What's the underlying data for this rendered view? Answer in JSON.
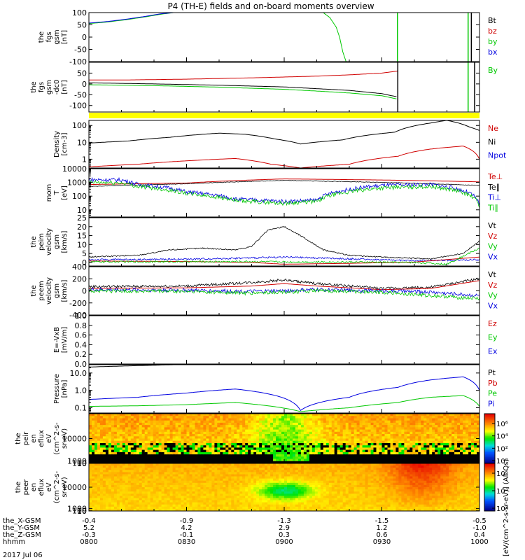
{
  "title": "P4 (TH-E) fields and on-board moments overview",
  "date": "2017 Jul 06",
  "colors": {
    "black": "#000000",
    "red": "#d00000",
    "green": "#00c800",
    "blue": "#0000e0",
    "yellow": "#ffff00"
  },
  "x_labels": {
    "rows": [
      {
        "label": "the_X-GSM",
        "values": [
          "-0.4",
          "-0.9",
          "-1.3",
          "-1.5",
          "-0.5"
        ]
      },
      {
        "label": "the_Y-GSM",
        "values": [
          "5.2",
          "4.2",
          "2.9",
          "1.2",
          "-1.0"
        ]
      },
      {
        "label": "the_Z-GSM",
        "values": [
          "-0.3",
          "-0.1",
          "0.3",
          "0.6",
          "0.4"
        ]
      },
      {
        "label": "hhmm",
        "values": [
          "0800",
          "0830",
          "0900",
          "0930",
          "1000"
        ]
      }
    ]
  },
  "chart_data": [
    {
      "type": "line",
      "id": "fgs",
      "ylabel": [
        "the",
        "fgs",
        "gsm",
        "[nT]"
      ],
      "ylim": [
        -100,
        100
      ],
      "yticks": [
        "100",
        "50",
        "0",
        "-50",
        "-100"
      ],
      "ytick_values": [
        100,
        50,
        0,
        -50,
        -100
      ],
      "legend": [
        {
          "name": "Bt",
          "color": "black"
        },
        {
          "name": "bz",
          "color": "red"
        },
        {
          "name": "by",
          "color": "green"
        },
        {
          "name": "bx",
          "color": "blue"
        }
      ],
      "series": [
        {
          "name": "by",
          "color": "green",
          "x": [
            800,
            806,
            812,
            818,
            822,
            826,
            827
          ],
          "y": [
            55,
            62,
            72,
            84,
            93,
            100,
            100
          ]
        },
        {
          "name": "bx",
          "color": "blue",
          "x": [
            800,
            806,
            812,
            818,
            822,
            826
          ],
          "y": [
            57,
            64,
            74,
            86,
            95,
            100
          ]
        },
        {
          "name": "by-late",
          "color": "green",
          "x": [
            912,
            914,
            916,
            917,
            918,
            919
          ],
          "y": [
            100,
            80,
            40,
            0,
            -60,
            -100
          ]
        }
      ],
      "vlines": [
        {
          "x": 934.8,
          "color": "green"
        },
        {
          "x": 956.5,
          "color": "green"
        },
        {
          "x": 957.5,
          "color": "black"
        }
      ]
    },
    {
      "type": "line",
      "id": "fgs-dc",
      "ylabel": [
        "the",
        "fgs",
        "gsm",
        "-dc0",
        "[nT]"
      ],
      "ylim": [
        -130,
        100
      ],
      "yticks": [
        "50",
        "0",
        "-50",
        "-100"
      ],
      "ytick_values": [
        50,
        0,
        -50,
        -100
      ],
      "legend": [
        {
          "name": "By",
          "color": "green"
        }
      ],
      "series": [
        {
          "name": "bz",
          "color": "red",
          "x": [
            800,
            810,
            820,
            830,
            840,
            850,
            900,
            910,
            920,
            930,
            935
          ],
          "y": [
            18,
            18,
            20,
            22,
            25,
            28,
            32,
            36,
            42,
            50,
            60
          ]
        },
        {
          "name": "Bt",
          "color": "black",
          "x": [
            800,
            820,
            840,
            900,
            910,
            920,
            930,
            934.8
          ],
          "y": [
            5,
            0,
            -6,
            -14,
            -22,
            -30,
            -45,
            -60
          ]
        },
        {
          "name": "By",
          "color": "green",
          "x": [
            800,
            820,
            840,
            900,
            910,
            920,
            930,
            934.8
          ],
          "y": [
            -4,
            -8,
            -15,
            -25,
            -33,
            -42,
            -55,
            -70
          ]
        }
      ],
      "vlines": [
        {
          "x": 934.9,
          "color": "black"
        },
        {
          "x": 956.5,
          "color": "green"
        },
        {
          "x": 958.5,
          "color": "black"
        }
      ]
    },
    {
      "type": "line",
      "id": "density",
      "log": true,
      "ylabel": [
        "Density",
        "[cm-3]"
      ],
      "ylim": [
        0.3,
        200
      ],
      "yticks": [
        "100",
        "10",
        "1"
      ],
      "ytick_values": [
        100,
        10,
        1
      ],
      "legend": [
        {
          "name": "Ne",
          "color": "red"
        },
        {
          "name": "Ni",
          "color": "black"
        },
        {
          "name": "Npot",
          "color": "blue"
        }
      ],
      "series": [
        {
          "name": "Ni",
          "color": "black",
          "x": [
            800,
            812,
            825,
            840,
            848,
            857,
            905,
            918,
            934,
            945,
            950,
            957,
            1000
          ],
          "y": [
            9,
            12,
            20,
            35,
            30,
            16,
            8,
            14,
            40,
            140,
            200,
            80,
            50
          ]
        },
        {
          "name": "Ne",
          "color": "red",
          "x": [
            800,
            815,
            830,
            845,
            856,
            905,
            920,
            935,
            945,
            955,
            1000
          ],
          "y": [
            0.35,
            0.5,
            0.8,
            1.1,
            0.5,
            0.3,
            0.5,
            1.5,
            4,
            6,
            1
          ]
        }
      ]
    },
    {
      "type": "line",
      "id": "temperature",
      "log": true,
      "ylabel": [
        "mom",
        "T",
        "[eV]"
      ],
      "ylim": [
        3,
        10000
      ],
      "yticks": [
        "10000",
        "1000",
        "100",
        "10"
      ],
      "ytick_values": [
        10000,
        1000,
        100,
        10
      ],
      "legend": [
        {
          "name": "Te⊥",
          "color": "red"
        },
        {
          "name": "Te∥",
          "color": "black"
        },
        {
          "name": "Ti⊥",
          "color": "blue"
        },
        {
          "name": "Ti∥",
          "color": "green"
        }
      ],
      "series": [
        {
          "name": "Te⊥",
          "color": "red",
          "x": [
            800,
            830,
            900,
            930,
            1000
          ],
          "y": [
            700,
            900,
            1800,
            1500,
            1100
          ]
        },
        {
          "name": "Te∥",
          "color": "black",
          "x": [
            800,
            830,
            900,
            930,
            1000
          ],
          "y": [
            500,
            800,
            1400,
            1000,
            600
          ]
        },
        {
          "name": "Ti⊥",
          "color": "blue",
          "x": [
            800,
            810,
            815,
            830,
            845,
            900,
            910,
            920,
            930,
            945,
            1000
          ],
          "y": [
            1600,
            1500,
            700,
            200,
            60,
            40,
            50,
            300,
            600,
            700,
            20
          ]
        },
        {
          "name": "Ti∥",
          "color": "green",
          "x": [
            800,
            810,
            815,
            830,
            845,
            900,
            910,
            920,
            930,
            945,
            1000
          ],
          "y": [
            1000,
            900,
            500,
            150,
            45,
            30,
            40,
            200,
            400,
            500,
            15
          ]
        }
      ]
    },
    {
      "type": "line",
      "id": "peim-velocity",
      "ylabel": [
        "the",
        "peim",
        "velocity",
        "gsm",
        "[km/s]"
      ],
      "ylim": [
        -2,
        25
      ],
      "yticks": [
        "25",
        "20",
        "15",
        "10",
        "5",
        "0"
      ],
      "ytick_values": [
        25,
        20,
        15,
        10,
        5,
        0
      ],
      "legend": [
        {
          "name": "Vt",
          "color": "black"
        },
        {
          "name": "Vz",
          "color": "red"
        },
        {
          "name": "Vy",
          "color": "green"
        },
        {
          "name": "Vx",
          "color": "blue"
        }
      ],
      "series": [
        {
          "name": "Vt",
          "color": "black",
          "x": [
            800,
            815,
            825,
            835,
            845,
            850,
            855,
            900,
            905,
            912,
            920,
            930,
            945,
            955,
            1000
          ],
          "y": [
            3,
            4,
            7,
            8,
            7,
            9,
            18,
            20,
            15,
            7,
            4,
            3,
            2,
            5,
            12
          ]
        },
        {
          "name": "Vx",
          "color": "blue",
          "x": [
            800,
            830,
            850,
            900,
            920,
            940,
            1000
          ],
          "y": [
            1.5,
            1.8,
            2.5,
            3,
            2,
            1,
            1.5
          ]
        },
        {
          "name": "Vz",
          "color": "red",
          "x": [
            800,
            830,
            850,
            900,
            920,
            940,
            1000
          ],
          "y": [
            0.8,
            0.5,
            0,
            -1,
            -0.5,
            0.2,
            3
          ]
        },
        {
          "name": "Vy",
          "color": "green",
          "x": [
            800,
            830,
            850,
            900,
            920,
            940,
            950,
            1000
          ],
          "y": [
            0.3,
            0.4,
            0.5,
            0.3,
            0.2,
            0,
            -1,
            8
          ]
        }
      ]
    },
    {
      "type": "line",
      "id": "peem-velocity",
      "ylabel": [
        "the",
        "peem",
        "velocity",
        "gsm",
        "[km/s]"
      ],
      "ylim": [
        -400,
        400
      ],
      "yticks": [
        "400",
        "200",
        "0",
        "-200",
        "-400"
      ],
      "ytick_values": [
        400,
        200,
        0,
        -200,
        -400
      ],
      "legend": [
        {
          "name": "Vt",
          "color": "black"
        },
        {
          "name": "Vz",
          "color": "red"
        },
        {
          "name": "Vy",
          "color": "green"
        },
        {
          "name": "Vx",
          "color": "blue"
        }
      ],
      "series": [
        {
          "name": "Vt",
          "color": "black",
          "x": [
            800,
            830,
            850,
            900,
            910,
            930,
            945,
            1000
          ],
          "y": [
            70,
            80,
            140,
            180,
            120,
            40,
            60,
            200
          ]
        },
        {
          "name": "Vz",
          "color": "red",
          "x": [
            800,
            830,
            850,
            900,
            910,
            930,
            945,
            1000
          ],
          "y": [
            40,
            50,
            80,
            120,
            80,
            20,
            40,
            170
          ]
        },
        {
          "name": "Vx",
          "color": "blue",
          "x": [
            800,
            830,
            850,
            900,
            910,
            930,
            945,
            1000
          ],
          "y": [
            20,
            10,
            -10,
            0,
            20,
            0,
            -20,
            -80
          ]
        },
        {
          "name": "Vy",
          "color": "green",
          "x": [
            800,
            830,
            850,
            900,
            910,
            930,
            945,
            1000
          ],
          "y": [
            0,
            -10,
            -40,
            -20,
            0,
            -20,
            -80,
            -130
          ]
        }
      ]
    },
    {
      "type": "line",
      "id": "efield",
      "ylabel": [
        "E=-VxB",
        "[mV/m]"
      ],
      "ylim": [
        0,
        1
      ],
      "yticks": [
        "1.0",
        "0.8",
        "0.6",
        "0.4",
        "0.2",
        "0.0"
      ],
      "ytick_values": [
        1,
        0.8,
        0.6,
        0.4,
        0.2,
        0
      ],
      "legend": [
        {
          "name": "Ez",
          "color": "red"
        },
        {
          "name": "Ey",
          "color": "green"
        },
        {
          "name": "Ex",
          "color": "blue"
        }
      ],
      "series": []
    },
    {
      "type": "line",
      "id": "pressure",
      "log": true,
      "ylabel": [
        "Pressure",
        "[nPa]"
      ],
      "ylim": [
        0.05,
        30
      ],
      "yticks": [
        "10.0",
        "1.0",
        "0.1"
      ],
      "ytick_values": [
        10,
        1,
        0.1
      ],
      "legend": [
        {
          "name": "Pt",
          "color": "black"
        },
        {
          "name": "Pb",
          "color": "red"
        },
        {
          "name": "Pe",
          "color": "green"
        },
        {
          "name": "Pi",
          "color": "blue"
        }
      ],
      "series": [
        {
          "name": "Pt",
          "color": "black",
          "x": [
            800,
            810,
            820,
            826
          ],
          "y": [
            22,
            25,
            28,
            30
          ]
        },
        {
          "name": "Pi",
          "color": "blue",
          "x": [
            800,
            815,
            830,
            845,
            905,
            920,
            935,
            945,
            955,
            1000
          ],
          "y": [
            0.3,
            0.4,
            0.7,
            1.2,
            0.07,
            0.4,
            1.5,
            4,
            6,
            1
          ]
        },
        {
          "name": "Pe",
          "color": "green",
          "x": [
            800,
            815,
            830,
            845,
            905,
            920,
            935,
            945,
            955,
            1000
          ],
          "y": [
            0.12,
            0.13,
            0.15,
            0.2,
            0.06,
            0.1,
            0.2,
            0.4,
            0.5,
            0.12
          ]
        }
      ]
    },
    {
      "type": "heatmap",
      "id": "peir",
      "ylabel": [
        "the",
        "peir",
        "en",
        "eflux",
        "eV",
        "(cm^2-s-",
        "sr-eV)"
      ],
      "ylim": [
        6,
        20000
      ],
      "yticks": [
        "10000",
        "1000",
        "100",
        "10"
      ],
      "ytick_values": [
        10000,
        1000,
        100,
        10
      ]
    },
    {
      "type": "heatmap",
      "id": "peer",
      "ylabel": [
        "the",
        "peer",
        "en",
        "eflux",
        "eV",
        "(cm^2-s-",
        "sr-eV)"
      ],
      "ylim": [
        6,
        20000
      ],
      "yticks": [
        "10000",
        "1000",
        "100",
        "10"
      ],
      "ytick_values": [
        10000,
        1000,
        100,
        10
      ]
    }
  ],
  "colorbars": [
    {
      "id": "cb-peir",
      "ticks": [
        "10⁶",
        "10⁴",
        "10²",
        "10⁰"
      ]
    },
    {
      "id": "cb-peer",
      "ticks": [
        "10⁶",
        "10⁴",
        "10²"
      ]
    }
  ],
  "colorbar_label": "[eV/(cm^2-s-sr-eV)] (All Qs)"
}
